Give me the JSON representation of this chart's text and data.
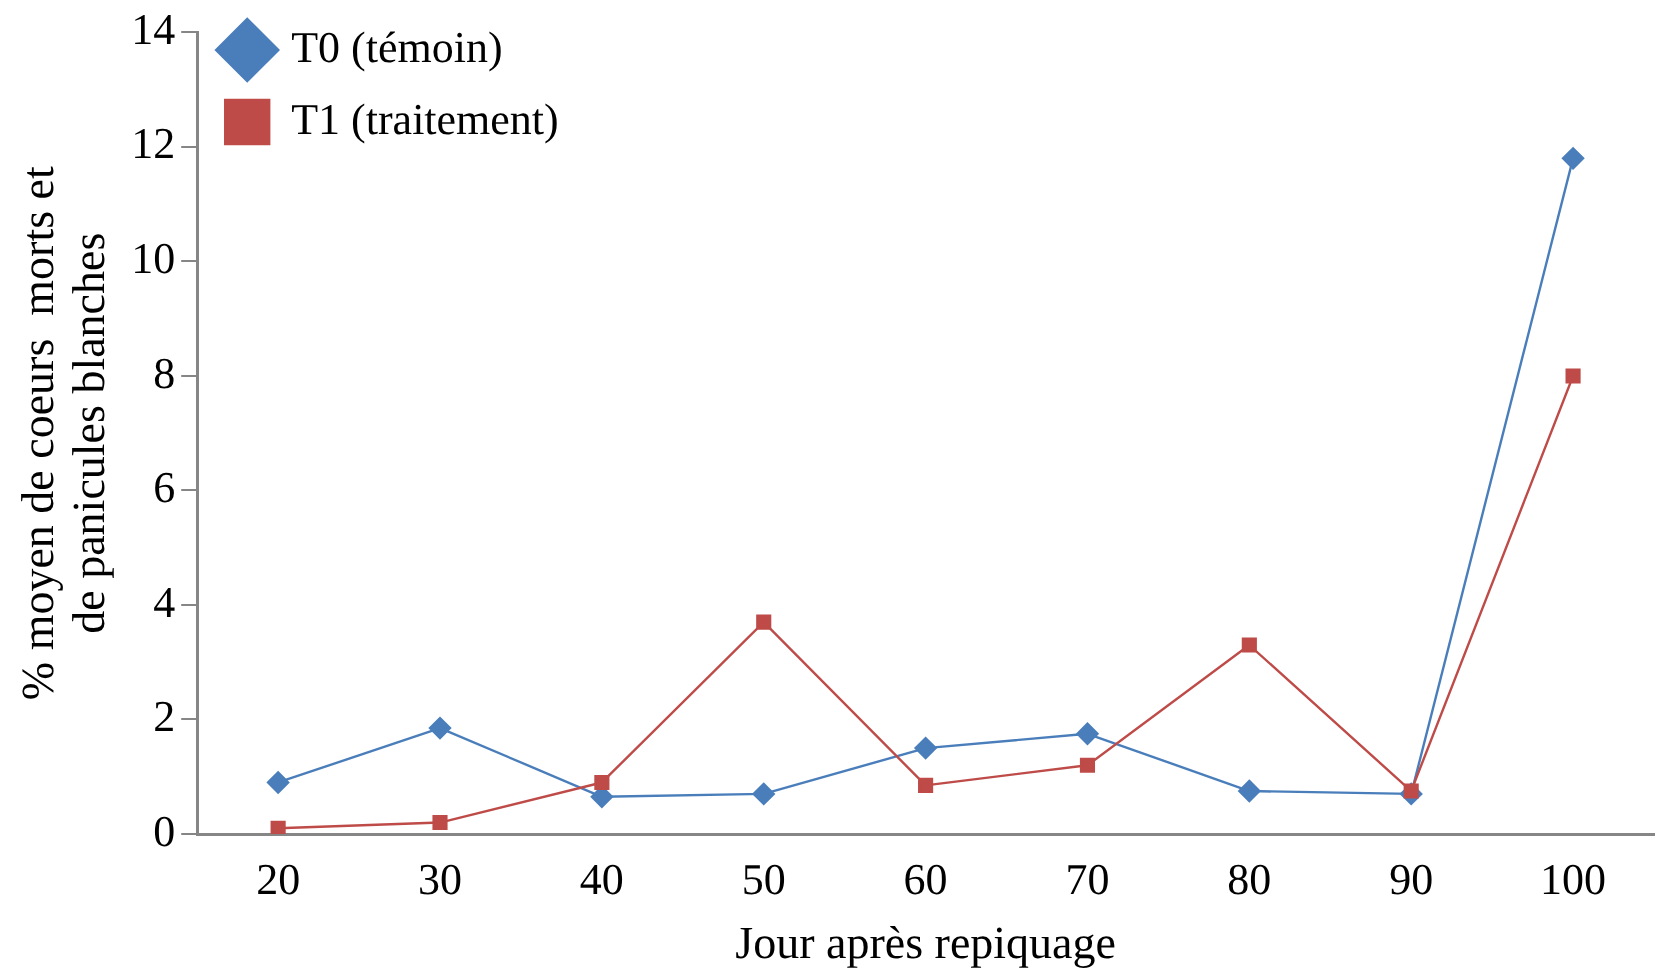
{
  "chart_data": {
    "type": "line",
    "xlabel": "Jour après repiquage",
    "ylabel": "% moyen de coeurs  morts et\nde panicules blanches",
    "categories": [
      "20",
      "30",
      "40",
      "50",
      "60",
      "70",
      "80",
      "90",
      "100"
    ],
    "series": [
      {
        "name": "T0 (témoin)",
        "color": "#4a7ebb",
        "marker": "diamond",
        "values": [
          0.9,
          1.85,
          0.65,
          0.7,
          1.5,
          1.75,
          0.75,
          0.7,
          11.8
        ]
      },
      {
        "name": "T1 (traitement)",
        "color": "#be4b48",
        "marker": "square",
        "values": [
          0.1,
          0.2,
          0.9,
          3.7,
          0.85,
          1.2,
          3.3,
          0.75,
          8.0
        ]
      }
    ],
    "ylim": [
      0,
      14
    ],
    "yticks": [
      0,
      2,
      4,
      6,
      8,
      10,
      12,
      14
    ],
    "grid": false,
    "legend": "top left"
  }
}
